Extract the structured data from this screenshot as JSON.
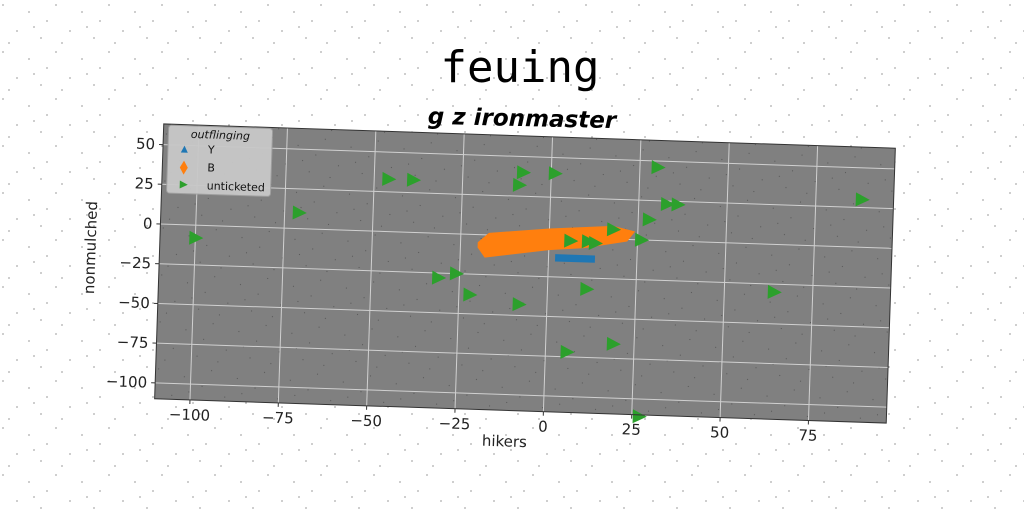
{
  "chart_data": {
    "type": "scatter",
    "title": "feuing",
    "subtitle": "g z ironmaster",
    "xlabel": "hikers",
    "ylabel": "nonmulched",
    "xlim": [
      -110,
      97
    ],
    "ylim": [
      -110,
      63
    ],
    "xticks": [
      -100,
      -75,
      -50,
      -25,
      0,
      25,
      50,
      75
    ],
    "yticks": [
      50,
      25,
      0,
      -25,
      -50,
      -75,
      -100
    ],
    "grid": true,
    "legend": {
      "title": "outflinging",
      "placement": "top-left"
    },
    "colors": {
      "plot_bg": "#808080",
      "Y": "#1f77b4",
      "B": "#ff7f0e",
      "unticketed": "#2ca02c"
    },
    "series": [
      {
        "name": "Y",
        "type": "area",
        "marker": "triangle-up",
        "color": "#1f77b4",
        "points": [
          [
            2,
            -11
          ],
          [
            13,
            -11
          ],
          [
            13,
            -15
          ],
          [
            2,
            -15
          ]
        ]
      },
      {
        "name": "B",
        "type": "area",
        "marker": "diamond",
        "color": "#ff7f0e",
        "points": [
          [
            -20,
            -5
          ],
          [
            -17,
            1
          ],
          [
            0,
            5
          ],
          [
            18,
            8
          ],
          [
            24,
            5
          ],
          [
            22,
            -1
          ],
          [
            10,
            -6
          ],
          [
            0,
            -8
          ],
          [
            -18,
            -14
          ],
          [
            -20,
            -8
          ]
        ]
      },
      {
        "name": "unticketed",
        "type": "scatter",
        "marker": "triangle-right",
        "color": "#2ca02c",
        "points": [
          [
            -100,
            -8
          ],
          [
            -71,
            10
          ],
          [
            -46,
            33
          ],
          [
            -39,
            33
          ],
          [
            -31,
            -28
          ],
          [
            -26,
            -25
          ],
          [
            -22,
            -38
          ],
          [
            -8,
            40
          ],
          [
            -9,
            32
          ],
          [
            -8,
            -43
          ],
          [
            1,
            40
          ],
          [
            6,
            -2
          ],
          [
            11,
            -2
          ],
          [
            13,
            -3
          ],
          [
            18,
            6
          ],
          [
            11,
            -32
          ],
          [
            6,
            -72
          ],
          [
            19,
            -66
          ],
          [
            26,
            0
          ],
          [
            28,
            13
          ],
          [
            30,
            46
          ],
          [
            33,
            23
          ],
          [
            36,
            23
          ],
          [
            27,
            -111
          ],
          [
            64,
            -30
          ],
          [
            88,
            30
          ]
        ]
      }
    ]
  }
}
